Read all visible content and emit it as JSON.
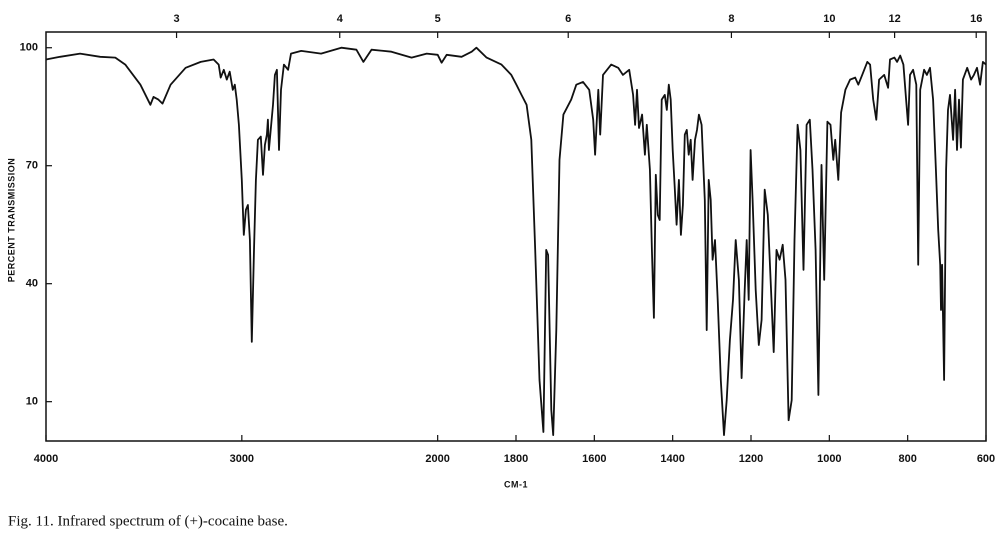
{
  "chart_data": {
    "type": "line",
    "x_label": "CM-1",
    "y_label": "PERCENT TRANSMISSION",
    "caption": "Fig. 11. Infrared spectrum of (+)-cocaine base.",
    "xlim": [
      4000,
      600
    ],
    "x_scale_break": 2000,
    "xticks": [
      4000,
      3000,
      2000,
      1800,
      1600,
      1400,
      1200,
      1000,
      800,
      600
    ],
    "x2ticks": [
      3,
      4,
      5,
      6,
      8,
      10,
      12,
      16
    ],
    "ylim": [
      0,
      104
    ],
    "yticks": [
      10,
      40,
      70,
      100
    ],
    "color": "#111111",
    "x": [
      4000,
      3928,
      3826,
      3723,
      3646,
      3595,
      3518,
      3467,
      3451,
      3426,
      3405,
      3364,
      3287,
      3210,
      3144,
      3118,
      3108,
      3092,
      3077,
      3062,
      3046,
      3036,
      3026,
      3015,
      3000,
      2990,
      2979,
      2969,
      2959,
      2949,
      2938,
      2928,
      2918,
      2903,
      2892,
      2882,
      2872,
      2867,
      2862,
      2851,
      2841,
      2831,
      2821,
      2810,
      2800,
      2785,
      2764,
      2749,
      2697,
      2595,
      2492,
      2415,
      2379,
      2338,
      2236,
      2133,
      2056,
      2000,
      1990,
      1977,
      1939,
      1913,
      1901,
      1875,
      1837,
      1812,
      1799,
      1786,
      1773,
      1761,
      1751,
      1740,
      1730,
      1723,
      1718,
      1710,
      1705,
      1697,
      1689,
      1679,
      1659,
      1646,
      1629,
      1613,
      1603,
      1598,
      1590,
      1585,
      1578,
      1557,
      1539,
      1527,
      1511,
      1501,
      1496,
      1491,
      1486,
      1478,
      1471,
      1466,
      1458,
      1453,
      1448,
      1443,
      1438,
      1433,
      1428,
      1420,
      1415,
      1410,
      1405,
      1400,
      1395,
      1390,
      1384,
      1379,
      1374,
      1369,
      1364,
      1359,
      1354,
      1349,
      1343,
      1338,
      1333,
      1326,
      1318,
      1313,
      1308,
      1303,
      1298,
      1292,
      1285,
      1277,
      1269,
      1262,
      1254,
      1246,
      1239,
      1231,
      1224,
      1216,
      1211,
      1206,
      1201,
      1196,
      1188,
      1180,
      1173,
      1165,
      1157,
      1150,
      1142,
      1135,
      1127,
      1119,
      1112,
      1104,
      1096,
      1089,
      1081,
      1074,
      1066,
      1058,
      1050,
      1043,
      1035,
      1028,
      1020,
      1013,
      1005,
      997,
      990,
      985,
      977,
      970,
      959,
      947,
      934,
      926,
      916,
      903,
      896,
      888,
      880,
      873,
      860,
      850,
      845,
      834,
      827,
      819,
      811,
      804,
      799,
      794,
      786,
      778,
      773,
      768,
      758,
      751,
      743,
      735,
      728,
      722,
      717,
      715,
      712,
      707,
      702,
      697,
      692,
      684,
      679,
      674,
      669,
      664,
      659,
      648,
      638,
      631,
      623,
      615,
      608,
      600
    ],
    "values": [
      97,
      97.7,
      98.5,
      97.7,
      97.5,
      95.7,
      90.6,
      85.5,
      87.5,
      86.8,
      85.8,
      90.6,
      94.9,
      96.4,
      97,
      95.7,
      92.4,
      94.4,
      91.9,
      93.9,
      89.3,
      90.6,
      86.8,
      80.4,
      66.4,
      52.4,
      58.8,
      60,
      51.1,
      25.2,
      48.6,
      66.4,
      76.6,
      77.4,
      67.7,
      75.3,
      77.9,
      81.7,
      74,
      79.9,
      85.5,
      93.1,
      94.4,
      74,
      89.3,
      95.7,
      94.4,
      98.5,
      99.2,
      98.5,
      100,
      99.5,
      96.4,
      99.5,
      99,
      97.5,
      98.5,
      98.2,
      96.2,
      98.2,
      97.7,
      99,
      100,
      97.5,
      95.7,
      93.1,
      90.6,
      88,
      85.5,
      76.6,
      48.6,
      15.5,
      2.3,
      48.6,
      47.3,
      7.9,
      1.5,
      28.2,
      71.5,
      83,
      86.8,
      90.6,
      91.3,
      89.3,
      81.7,
      72.8,
      89.3,
      77.9,
      93.1,
      95.7,
      94.9,
      93.1,
      94.4,
      88,
      80.4,
      89.3,
      79.6,
      83,
      72.8,
      80.4,
      69,
      48.6,
      31.3,
      67.7,
      57.5,
      56.2,
      86.8,
      88,
      84.2,
      90.6,
      86.8,
      74,
      65.1,
      55,
      66.4,
      52.4,
      60,
      77.9,
      79.1,
      72.8,
      76.6,
      66.4,
      76.6,
      79.1,
      83,
      80.4,
      61.3,
      28.2,
      66.4,
      61.3,
      46.1,
      51.1,
      35.9,
      15.5,
      1.5,
      10.4,
      25.7,
      35.9,
      51.1,
      40.9,
      16,
      38.4,
      51.1,
      35.9,
      74,
      61.3,
      38.4,
      24.4,
      30.8,
      63.9,
      57.5,
      41,
      22.6,
      48.6,
      46.1,
      49.9,
      41,
      5.3,
      10.4,
      51.1,
      80.4,
      74,
      43.5,
      80.4,
      81.7,
      69,
      48.6,
      11.7,
      70.2,
      41,
      81.2,
      80.4,
      71.5,
      76.6,
      66.4,
      83.5,
      89.3,
      91.9,
      92.4,
      90.6,
      93.1,
      96.4,
      95.7,
      86.8,
      81.7,
      91.9,
      93.1,
      89.8,
      97,
      97.5,
      96.4,
      98,
      95.7,
      86.8,
      80.4,
      93.1,
      94.4,
      90.6,
      44.8,
      89.3,
      94.4,
      93.1,
      94.9,
      86.8,
      69,
      53.7,
      44.8,
      33.3,
      44.8,
      15.5,
      69,
      84.2,
      88,
      76.6,
      89.3,
      74,
      86.8,
      74.6,
      91.9,
      94.9,
      91.9,
      93.1,
      94.9,
      90.6,
      96.4,
      95.7
    ]
  }
}
